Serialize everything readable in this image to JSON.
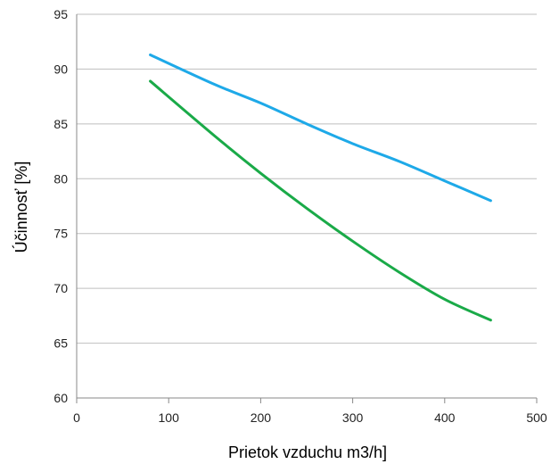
{
  "chart_data": {
    "type": "line",
    "title": "",
    "xlabel": "Prietok vzduchu m3/h]",
    "ylabel": "Účinnosť [%]",
    "xlim": [
      0,
      500
    ],
    "ylim": [
      60,
      95
    ],
    "x_ticks": [
      0,
      100,
      200,
      300,
      400,
      500
    ],
    "y_ticks": [
      60,
      65,
      70,
      75,
      80,
      85,
      90,
      95
    ],
    "grid": "horizontal",
    "legend": "none",
    "series": [
      {
        "color": "#1ea9e8",
        "points": [
          [
            80,
            91.3
          ],
          [
            150,
            88.6
          ],
          [
            200,
            86.9
          ],
          [
            250,
            85.0
          ],
          [
            300,
            83.2
          ],
          [
            350,
            81.6
          ],
          [
            400,
            79.8
          ],
          [
            450,
            78.0
          ]
        ]
      },
      {
        "color": "#1aaa48",
        "points": [
          [
            80,
            88.9
          ],
          [
            150,
            83.9
          ],
          [
            200,
            80.5
          ],
          [
            250,
            77.3
          ],
          [
            300,
            74.3
          ],
          [
            350,
            71.5
          ],
          [
            400,
            69.0
          ],
          [
            450,
            67.1
          ]
        ]
      }
    ]
  }
}
